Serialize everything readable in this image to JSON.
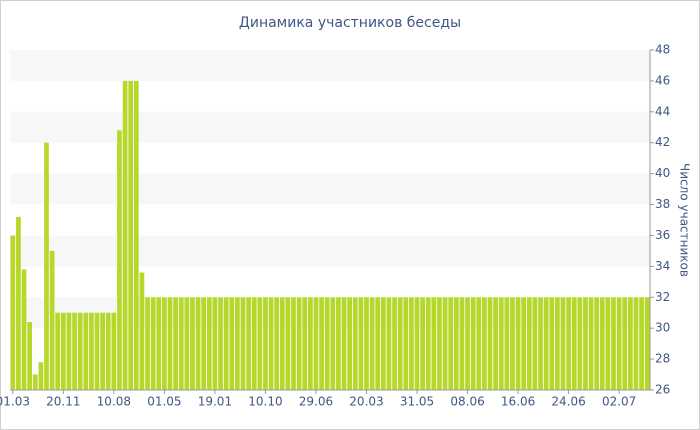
{
  "chart_data": {
    "type": "bar",
    "title": "Динамика участников беседы",
    "y_label": "Число участников",
    "categories": [
      "01.03",
      null,
      null,
      null,
      null,
      null,
      null,
      null,
      null,
      "20.11",
      null,
      null,
      null,
      null,
      null,
      null,
      null,
      null,
      "10.08",
      null,
      null,
      null,
      null,
      null,
      null,
      null,
      null,
      "01.05",
      null,
      null,
      null,
      null,
      null,
      null,
      null,
      null,
      "19.01",
      null,
      null,
      null,
      null,
      null,
      null,
      null,
      null,
      "10.10",
      null,
      null,
      null,
      null,
      null,
      null,
      null,
      null,
      "29.06",
      null,
      null,
      null,
      null,
      null,
      null,
      null,
      null,
      "20.03",
      null,
      null,
      null,
      null,
      null,
      null,
      null,
      null,
      "31.05",
      null,
      null,
      null,
      null,
      null,
      null,
      null,
      null,
      "08.06",
      null,
      null,
      null,
      null,
      null,
      null,
      null,
      null,
      "16.06",
      null,
      null,
      null,
      null,
      null,
      null,
      null,
      null,
      "24.06",
      null,
      null,
      null,
      null,
      null,
      null,
      null,
      null,
      "02.07",
      null,
      null,
      null,
      null,
      null
    ],
    "values": [
      36,
      37.2,
      33.8,
      30.4,
      27,
      27.8,
      42,
      35,
      31,
      31,
      31,
      31,
      31,
      31,
      31,
      31,
      31,
      31,
      31,
      42.8,
      46,
      46,
      46,
      33.6,
      32,
      32,
      32,
      32,
      32,
      32,
      32,
      32,
      32,
      32,
      32,
      32,
      32,
      32,
      32,
      32,
      32,
      32,
      32,
      32,
      32,
      32,
      32,
      32,
      32,
      32,
      32,
      32,
      32,
      32,
      32,
      32,
      32,
      32,
      32,
      32,
      32,
      32,
      32,
      32,
      32,
      32,
      32,
      32,
      32,
      32,
      32,
      32,
      32,
      32,
      32,
      32,
      32,
      32,
      32,
      32,
      32,
      32,
      32,
      32,
      32,
      32,
      32,
      32,
      32,
      32,
      32,
      32,
      32,
      32,
      32,
      32,
      32,
      32,
      32,
      32,
      32,
      32,
      32,
      32,
      32,
      32,
      32,
      32,
      32,
      32,
      32,
      32,
      32,
      32
    ],
    "color": "#b5d82a",
    "ylim": [
      26,
      48
    ],
    "yticks": [
      26,
      28,
      30,
      32,
      34,
      36,
      38,
      40,
      42,
      44,
      46,
      48
    ],
    "grid": "bands",
    "band_color": "#f7f7f7"
  }
}
